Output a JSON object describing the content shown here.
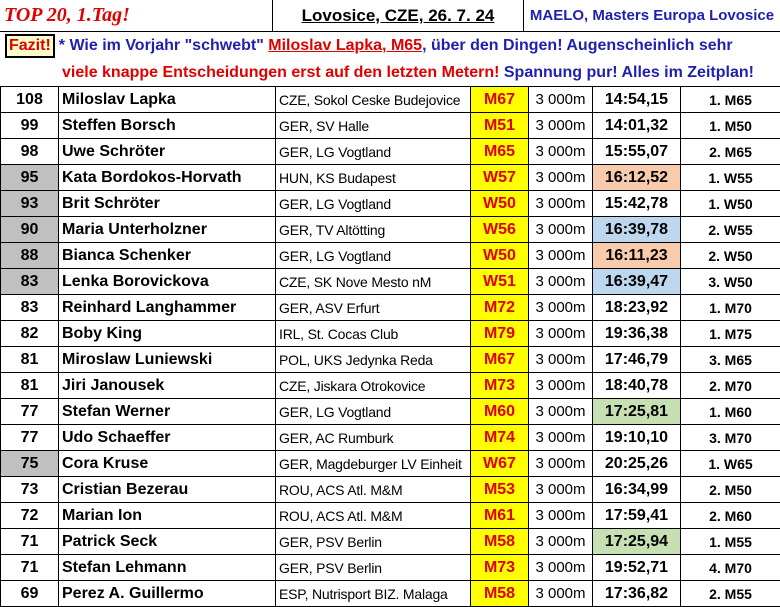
{
  "header": {
    "left": "TOP 20, 1.Tag!",
    "center": "Lovosice, CZE, 26. 7. 24",
    "right": "MAELO, Masters Europa Lovosice"
  },
  "summary": {
    "label": "Fazit!",
    "line1": [
      {
        "text": "* Wie im Vorjahr \"schwebt\" ",
        "color": "blue"
      },
      {
        "text": "Miloslav Lapka, M65",
        "color": "red",
        "underline": true
      },
      {
        "text": ", über den Dingen! Augenscheinlich sehr",
        "color": "blue"
      }
    ],
    "line2": [
      {
        "text": "viele knappe Entscheidungen erst auf den letzten Metern!",
        "color": "red"
      },
      {
        "text": " Spannung pur! Alles im Zeitplan!",
        "color": "blue"
      }
    ]
  },
  "table": {
    "rows": [
      {
        "points": "108",
        "name": "Miloslav Lapka",
        "club": "CZE, Sokol Ceske Budejovice",
        "class": "M67",
        "distance": "3 000m",
        "time": "14:54,15",
        "place": "1. M65"
      },
      {
        "points": "99",
        "name": "Steffen Borsch",
        "club": "GER, SV Halle",
        "class": "M51",
        "distance": "3 000m",
        "time": "14:01,32",
        "place": "1. M50"
      },
      {
        "points": "98",
        "name": "Uwe Schröter",
        "club": "GER, LG Vogtland",
        "class": "M65",
        "distance": "3 000m",
        "time": "15:55,07",
        "place": "2. M65"
      },
      {
        "points": "95",
        "name": "Kata Bordokos-Horvath",
        "club": "HUN, KS Budapest",
        "class": "W57",
        "distance": "3 000m",
        "time": "16:12,52",
        "place": "1. W55",
        "points_color": "#c0c0c0",
        "time_color": "#f8cbad"
      },
      {
        "points": "93",
        "name": "Brit Schröter",
        "club": "GER, LG Vogtland",
        "class": "W50",
        "distance": "3 000m",
        "time": "15:42,78",
        "place": "1. W50",
        "points_color": "#c0c0c0"
      },
      {
        "points": "90",
        "name": "Maria Unterholzner",
        "club": "GER, TV Altötting",
        "class": "W56",
        "distance": "3 000m",
        "time": "16:39,78",
        "place": "2. W55",
        "points_color": "#c0c0c0",
        "time_color": "#bdd7ee"
      },
      {
        "points": "88",
        "name": "Bianca Schenker",
        "club": "GER, LG Vogtland",
        "class": "W50",
        "distance": "3 000m",
        "time": "16:11,23",
        "place": "2. W50",
        "points_color": "#c0c0c0",
        "time_color": "#f8cbad"
      },
      {
        "points": "83",
        "name": "Lenka Borovickova",
        "club": "CZE, SK Nove Mesto nM",
        "class": "W51",
        "distance": "3 000m",
        "time": "16:39,47",
        "place": "3. W50",
        "points_color": "#c0c0c0",
        "time_color": "#bdd7ee"
      },
      {
        "points": "83",
        "name": "Reinhard Langhammer",
        "club": "GER, ASV Erfurt",
        "class": "M72",
        "distance": "3 000m",
        "time": "18:23,92",
        "place": "1. M70"
      },
      {
        "points": "82",
        "name": "Boby King",
        "club": "IRL, St. Cocas Club",
        "class": "M79",
        "distance": "3 000m",
        "time": "19:36,38",
        "place": "1. M75"
      },
      {
        "points": "81",
        "name": "Miroslaw Luniewski",
        "club": "POL, UKS Jedynka Reda",
        "class": "M67",
        "distance": "3 000m",
        "time": "17:46,79",
        "place": "3. M65"
      },
      {
        "points": "81",
        "name": "Jiri Janousek",
        "club": "CZE, Jiskara Otrokovice",
        "class": "M73",
        "distance": "3 000m",
        "time": "18:40,78",
        "place": "2. M70"
      },
      {
        "points": "77",
        "name": "Stefan Werner",
        "club": "GER, LG Vogtland",
        "class": "M60",
        "distance": "3 000m",
        "time": "17:25,81",
        "place": "1. M60",
        "time_color": "#c6e0b4"
      },
      {
        "points": "77",
        "name": "Udo Schaeffer",
        "club": "GER, AC Rumburk",
        "class": "M74",
        "distance": "3 000m",
        "time": "19:10,10",
        "place": "3. M70"
      },
      {
        "points": "75",
        "name": "Cora Kruse",
        "club": "GER, Magdeburger LV Einheit",
        "class": "W67",
        "distance": "3 000m",
        "time": "20:25,26",
        "place": "1. W65",
        "points_color": "#c0c0c0"
      },
      {
        "points": "73",
        "name": "Cristian Bezerau",
        "club": "ROU, ACS Atl. M&M",
        "class": "M53",
        "distance": "3 000m",
        "time": "16:34,99",
        "place": "2. M50"
      },
      {
        "points": "72",
        "name": "Marian Ion",
        "club": "ROU, ACS Atl. M&M",
        "class": "M61",
        "distance": "3 000m",
        "time": "17:59,41",
        "place": "2. M60"
      },
      {
        "points": "71",
        "name": "Patrick Seck",
        "club": "GER, PSV Berlin",
        "class": "M58",
        "distance": "3 000m",
        "time": "17:25,94",
        "place": "1. M55",
        "time_color": "#c6e0b4"
      },
      {
        "points": "71",
        "name": "Stefan Lehmann",
        "club": "GER, PSV Berlin",
        "class": "M73",
        "distance": "3 000m",
        "time": "19:52,71",
        "place": "4. M70"
      },
      {
        "points": "69",
        "name": "Perez A. Guillermo",
        "club": "ESP, Nutrisport BIZ. Malaga",
        "class": "M58",
        "distance": "3 000m",
        "time": "17:36,82",
        "place": "2. M55"
      }
    ]
  }
}
